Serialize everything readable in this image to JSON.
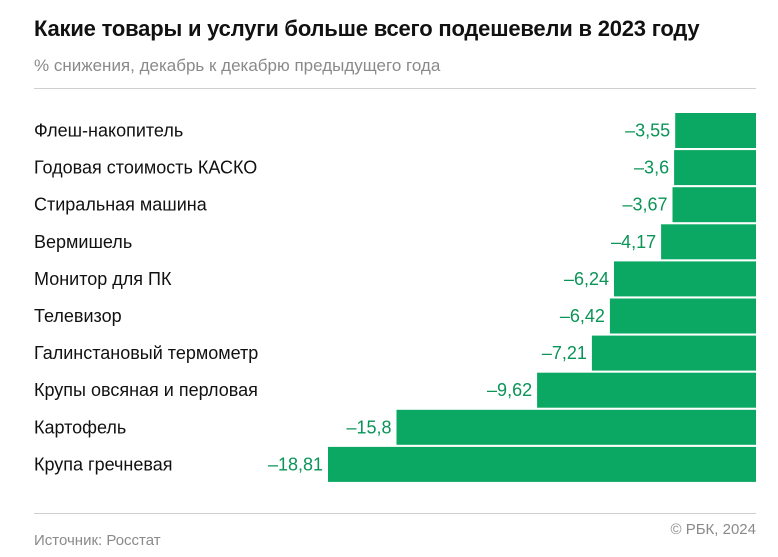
{
  "header": {
    "title": "Какие товары и услуги больше всего подешевели в 2023 году",
    "subtitle": "% снижения, декабрь к декабрю предыдущего года"
  },
  "footer": {
    "source": "Источник: Росстат",
    "copyright": "© РБК, 2024"
  },
  "colors": {
    "bar": "#0aa862",
    "value_label": "#0a9457",
    "category_label": "#111111"
  },
  "chart_data": {
    "type": "bar",
    "orientation": "horizontal",
    "title": "Какие товары и услуги больше всего подешевели в 2023 году",
    "subtitle": "% снижения, декабрь к декабрю предыдущего года",
    "categories": [
      "Флеш-накопитель",
      "Годовая стоимость КАСКО",
      "Стиральная машина",
      "Вермишель",
      "Монитор для ПК",
      "Телевизор",
      "Галинстановый термометр",
      "Крупы овсяная и перловая",
      "Картофель",
      "Крупа гречневая"
    ],
    "values": [
      -3.55,
      -3.6,
      -3.67,
      -4.17,
      -6.24,
      -6.42,
      -7.21,
      -9.62,
      -15.8,
      -18.81
    ],
    "value_labels": [
      "–3,55",
      "–3,6",
      "–3,67",
      "–4,17",
      "–6,24",
      "–6,42",
      "–7,21",
      "–9,62",
      "–15,8",
      "–18,81"
    ],
    "xlim": [
      -18.81,
      0
    ],
    "grid": false,
    "legend": "none"
  }
}
